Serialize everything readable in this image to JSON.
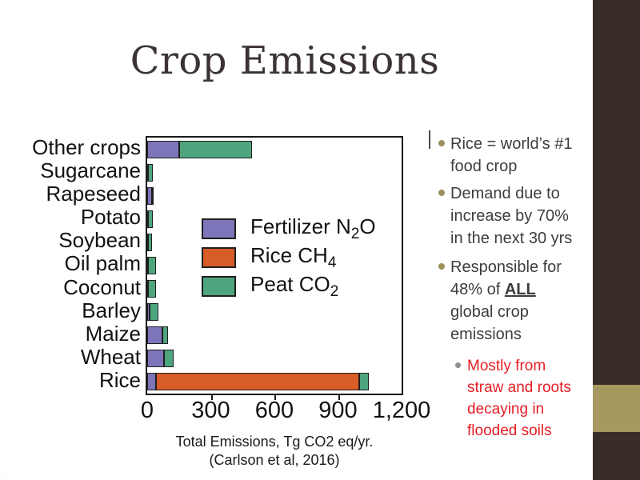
{
  "slide": {
    "title": "Crop Emissions",
    "theme": {
      "accent_brown": "#372d26",
      "accent_tan": "#a6985f",
      "bullet_dot": "#9c8f5b",
      "red_text": "#e61e25"
    }
  },
  "chart_data": {
    "type": "bar",
    "orientation": "horizontal",
    "stacked": true,
    "title": "",
    "xlabel": "Total Emissions, Tg CO2 eq/yr.",
    "source": "(Carlson et al, 2016)",
    "xlim": [
      0,
      1200
    ],
    "xticks": [
      0,
      300,
      600,
      900,
      1200
    ],
    "xtick_labels": [
      "0",
      "300",
      "600",
      "900",
      "1,200"
    ],
    "grid": false,
    "legend_position": "inside-center-right",
    "categories": [
      "Other crops",
      "Sugarcane",
      "Rapeseed",
      "Potato",
      "Soybean",
      "Oil palm",
      "Coconut",
      "Barley",
      "Maize",
      "Wheat",
      "Rice"
    ],
    "series": [
      {
        "name": "Fertilizer N₂O",
        "color": "#7c75b9",
        "values": [
          150,
          5,
          22,
          4,
          3,
          3,
          2,
          10,
          70,
          80,
          40
        ]
      },
      {
        "name": "Rice CH₄",
        "color": "#d85c28",
        "values": [
          0,
          0,
          0,
          0,
          0,
          0,
          0,
          0,
          0,
          0,
          960
        ]
      },
      {
        "name": "Peat CO₂",
        "color": "#4ea47e",
        "values": [
          345,
          20,
          5,
          22,
          20,
          38,
          40,
          43,
          30,
          45,
          45
        ]
      }
    ]
  },
  "bullets": {
    "item1": "Rice = world’s #1\nfood crop",
    "item2": "Demand due to\nincrease by 70%\nin the next 30 yrs",
    "item3_pre": "Responsible for\n48% of ",
    "item3_emph": "ALL",
    "item3_post": "\nglobal crop\nemissions",
    "item4": "Mostly from\nstraw and roots\ndecaying in\nflooded soils"
  }
}
